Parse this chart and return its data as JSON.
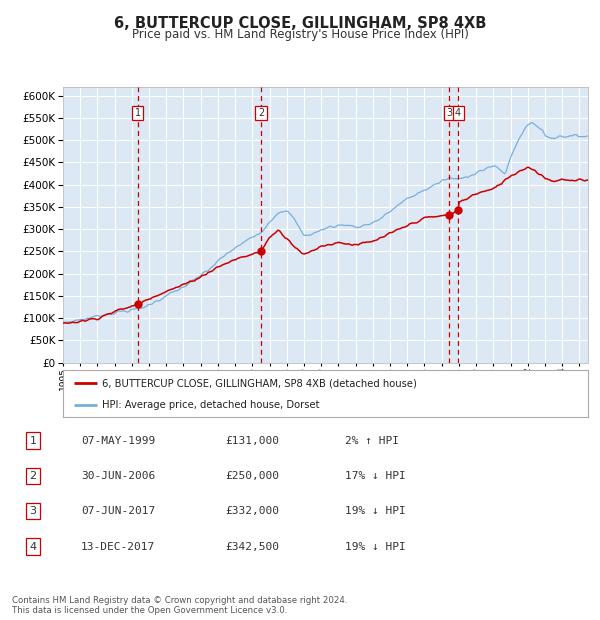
{
  "title": "6, BUTTERCUP CLOSE, GILLINGHAM, SP8 4XB",
  "subtitle": "Price paid vs. HM Land Registry's House Price Index (HPI)",
  "title_fontsize": 10.5,
  "subtitle_fontsize": 8.5,
  "xlim_start": 1995.0,
  "xlim_end": 2025.5,
  "ylim_min": 0,
  "ylim_max": 620000,
  "ytick_step": 50000,
  "background_color": "#ffffff",
  "plot_bg_color": "#dce9f5",
  "grid_color": "#ffffff",
  "hpi_line_color": "#7aaedb",
  "price_line_color": "#cc0000",
  "sale_marker_color": "#cc0000",
  "dashed_line_color": "#cc0000",
  "transactions": [
    {
      "num": 1,
      "date_str": "07-MAY-1999",
      "year": 1999.35,
      "price": 131000
    },
    {
      "num": 2,
      "date_str": "30-JUN-2006",
      "year": 2006.5,
      "price": 250000
    },
    {
      "num": 3,
      "date_str": "07-JUN-2017",
      "year": 2017.43,
      "price": 332000
    },
    {
      "num": 4,
      "date_str": "13-DEC-2017",
      "year": 2017.95,
      "price": 342500
    }
  ],
  "footnote": "Contains HM Land Registry data © Crown copyright and database right 2024.\nThis data is licensed under the Open Government Licence v3.0.",
  "legend_label_price": "6, BUTTERCUP CLOSE, GILLINGHAM, SP8 4XB (detached house)",
  "legend_label_hpi": "HPI: Average price, detached house, Dorset",
  "table_rows": [
    [
      "1",
      "07-MAY-1999",
      "£131,000",
      "2% ↑ HPI"
    ],
    [
      "2",
      "30-JUN-2006",
      "£250,000",
      "17% ↓ HPI"
    ],
    [
      "3",
      "07-JUN-2017",
      "£332,000",
      "19% ↓ HPI"
    ],
    [
      "4",
      "13-DEC-2017",
      "£342,500",
      "19% ↓ HPI"
    ]
  ],
  "hpi_waypoints_x": [
    1995,
    1995.5,
    1996,
    1996.5,
    1997,
    1997.5,
    1998,
    1998.5,
    1999,
    1999.5,
    2000,
    2000.5,
    2001,
    2001.5,
    2002,
    2002.5,
    2003,
    2003.5,
    2004,
    2004.5,
    2005,
    2005.5,
    2006,
    2006.5,
    2007,
    2007.3,
    2007.6,
    2007.9,
    2008.3,
    2008.7,
    2009,
    2009.5,
    2010,
    2010.5,
    2011,
    2011.5,
    2012,
    2012.5,
    2013,
    2013.5,
    2014,
    2014.5,
    2015,
    2015.5,
    2016,
    2016.5,
    2017,
    2017.5,
    2018,
    2018.5,
    2019,
    2019.5,
    2020,
    2020.3,
    2020.7,
    2021,
    2021.3,
    2021.6,
    2022,
    2022.3,
    2022.6,
    2022.9,
    2023,
    2023.5,
    2024,
    2024.5,
    2025
  ],
  "hpi_waypoints_y": [
    90000,
    93000,
    97000,
    100000,
    105000,
    109000,
    112000,
    116000,
    118000,
    122000,
    130000,
    140000,
    150000,
    160000,
    170000,
    182000,
    196000,
    210000,
    228000,
    244000,
    258000,
    270000,
    282000,
    294000,
    316000,
    330000,
    340000,
    342000,
    330000,
    305000,
    285000,
    290000,
    298000,
    305000,
    308000,
    310000,
    305000,
    308000,
    315000,
    325000,
    340000,
    355000,
    368000,
    378000,
    388000,
    398000,
    408000,
    415000,
    412000,
    418000,
    428000,
    435000,
    442000,
    435000,
    425000,
    460000,
    490000,
    510000,
    535000,
    540000,
    530000,
    520000,
    510000,
    505000,
    510000,
    508000,
    510000
  ],
  "price_waypoints_x": [
    1995,
    1996,
    1997,
    1998,
    1999.35,
    2000,
    2001,
    2002,
    2003,
    2004,
    2005,
    2006.5,
    2007,
    2007.5,
    2008,
    2008.5,
    2009,
    2009.5,
    2010,
    2011,
    2012,
    2013,
    2014,
    2015,
    2016,
    2017.43,
    2017.95,
    2018,
    2019,
    2020,
    2021,
    2022,
    2022.5,
    2023,
    2023.5,
    2024,
    2024.5,
    2025
  ],
  "price_waypoints_y": [
    88000,
    93000,
    100000,
    115000,
    131000,
    145000,
    160000,
    175000,
    193000,
    215000,
    232000,
    250000,
    282000,
    298000,
    280000,
    260000,
    242000,
    252000,
    262000,
    270000,
    265000,
    272000,
    290000,
    308000,
    325000,
    332000,
    342500,
    360000,
    380000,
    390000,
    420000,
    440000,
    430000,
    415000,
    408000,
    412000,
    408000,
    410000
  ]
}
